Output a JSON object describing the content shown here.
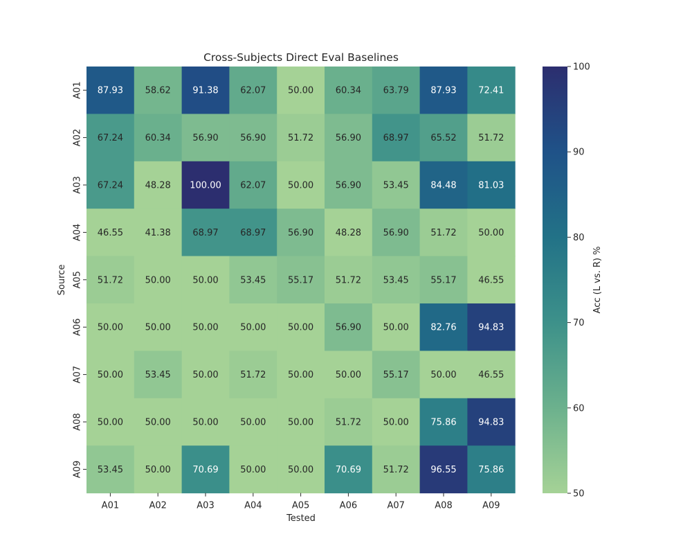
{
  "chart_data": {
    "type": "heatmap",
    "title": "Cross-Subjects Direct Eval Baselines",
    "xlabel": "Tested",
    "ylabel": "Source",
    "x_categories": [
      "A01",
      "A02",
      "A03",
      "A04",
      "A05",
      "A06",
      "A07",
      "A08",
      "A09"
    ],
    "y_categories": [
      "A01",
      "A02",
      "A03",
      "A04",
      "A05",
      "A06",
      "A07",
      "A08",
      "A09"
    ],
    "values": [
      [
        87.93,
        58.62,
        91.38,
        62.07,
        50.0,
        60.34,
        63.79,
        87.93,
        72.41
      ],
      [
        67.24,
        60.34,
        56.9,
        56.9,
        51.72,
        56.9,
        68.97,
        65.52,
        51.72
      ],
      [
        67.24,
        48.28,
        100.0,
        62.07,
        50.0,
        56.9,
        53.45,
        84.48,
        81.03
      ],
      [
        46.55,
        41.38,
        68.97,
        68.97,
        56.9,
        48.28,
        56.9,
        51.72,
        50.0
      ],
      [
        51.72,
        50.0,
        50.0,
        53.45,
        55.17,
        51.72,
        53.45,
        55.17,
        46.55
      ],
      [
        50.0,
        50.0,
        50.0,
        50.0,
        50.0,
        56.9,
        50.0,
        82.76,
        94.83
      ],
      [
        50.0,
        53.45,
        50.0,
        51.72,
        50.0,
        50.0,
        55.17,
        50.0,
        46.55
      ],
      [
        50.0,
        50.0,
        50.0,
        50.0,
        50.0,
        51.72,
        50.0,
        75.86,
        94.83
      ],
      [
        53.45,
        50.0,
        70.69,
        50.0,
        50.0,
        70.69,
        51.72,
        96.55,
        75.86
      ]
    ],
    "value_format": "2 decimals",
    "colorbar": {
      "label": "Acc (L vs. R) %",
      "range": [
        50,
        100
      ],
      "ticks": [
        50,
        60,
        70,
        80,
        90,
        100
      ]
    },
    "colormap": "crest",
    "colormap_stops": [
      {
        "v": 50,
        "color": "#a5d296"
      },
      {
        "v": 60,
        "color": "#6cb18d"
      },
      {
        "v": 70,
        "color": "#3d918a"
      },
      {
        "v": 80,
        "color": "#227287"
      },
      {
        "v": 90,
        "color": "#1f5288"
      },
      {
        "v": 100,
        "color": "#2c2e6f"
      }
    ],
    "grid": false
  }
}
